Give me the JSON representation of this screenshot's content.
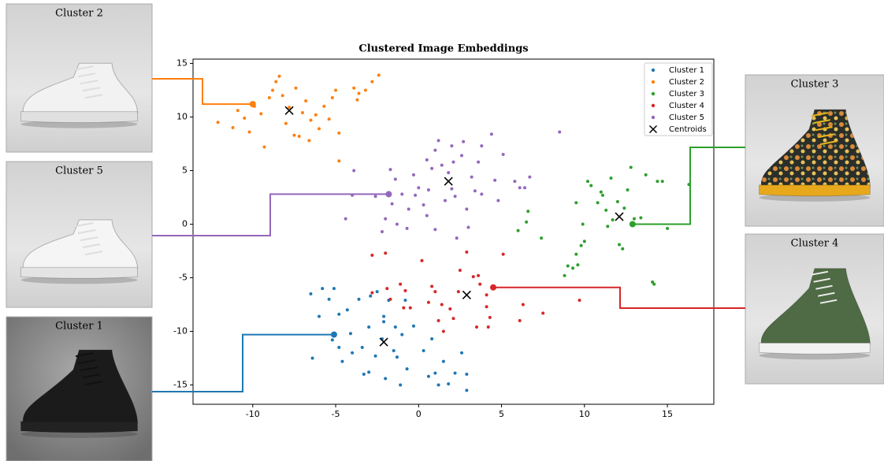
{
  "chart_data": {
    "type": "scatter",
    "title": "Clustered Image Embeddings",
    "xlim": [
      -13.6,
      17.8
    ],
    "ylim": [
      -16.8,
      15.4
    ],
    "xticks": [
      -10,
      -5,
      0,
      5,
      10,
      15
    ],
    "yticks": [
      -15,
      -10,
      -5,
      0,
      5,
      10,
      15
    ],
    "legend": "upper right",
    "series": [
      {
        "name": "Cluster 1",
        "color": "#1f77b4",
        "x": [
          -6.5,
          -6.4,
          -6.0,
          -5.8,
          -5.4,
          -5.1,
          -5.2,
          -4.8,
          -4.8,
          -4.6,
          -4.3,
          -4.1,
          -4.0,
          -3.6,
          -3.4,
          -3.3,
          -3.0,
          -3.0,
          -2.9,
          -2.6,
          -2.5,
          -2.2,
          -2.1,
          -2.0,
          -2.1,
          -1.8,
          -1.5,
          -1.3,
          -1.1,
          -1.0,
          -0.8,
          -0.7,
          -0.3,
          0.3,
          0.8,
          1.0,
          1.2,
          1.5,
          1.8,
          2.2,
          2.6,
          2.9,
          2.9,
          -1.4,
          0.6
        ],
        "y": [
          -6.5,
          -12.5,
          -8.6,
          -6.0,
          -7.0,
          -6.0,
          -10.8,
          -8.4,
          -11.5,
          -12.8,
          -8.0,
          -10.2,
          -12.0,
          -7.0,
          -11.5,
          -14.0,
          -13.8,
          -9.6,
          -6.7,
          -12.3,
          -6.3,
          -10.7,
          -8.6,
          -14.4,
          -9.1,
          -7.1,
          -11.8,
          -12.4,
          -15.0,
          -10.3,
          -7.1,
          -13.5,
          -9.5,
          -11.8,
          -10.7,
          -13.9,
          -15.0,
          -12.8,
          -14.9,
          -13.9,
          -12.0,
          -14.0,
          -15.5,
          -9.6,
          -14.2
        ],
        "highlight": {
          "x": -5.1,
          "y": -10.3
        }
      },
      {
        "name": "Cluster 2",
        "color": "#ff7f0e",
        "x": [
          -12.1,
          -11.2,
          -10.9,
          -10.5,
          -10.2,
          -9.9,
          -9.5,
          -9.3,
          -9.0,
          -8.8,
          -8.6,
          -8.4,
          -8.2,
          -8.0,
          -7.8,
          -7.5,
          -7.4,
          -7.2,
          -7.0,
          -6.8,
          -6.6,
          -6.5,
          -6.2,
          -6.0,
          -5.7,
          -5.4,
          -5.0,
          -4.8,
          -5.2,
          -4.8,
          -3.9,
          -3.7,
          -3.2,
          -2.8,
          -2.4,
          -3.6
        ],
        "y": [
          9.5,
          9.0,
          10.6,
          9.9,
          8.6,
          11.0,
          10.3,
          7.2,
          11.8,
          12.5,
          13.3,
          13.8,
          12.0,
          9.4,
          10.9,
          8.3,
          12.7,
          8.2,
          10.4,
          11.5,
          7.8,
          9.7,
          10.2,
          8.9,
          11.0,
          9.8,
          12.5,
          8.5,
          11.8,
          5.9,
          12.7,
          11.6,
          12.5,
          13.3,
          13.9,
          12.2
        ],
        "highlight": {
          "x": -10.0,
          "y": 11.2
        }
      },
      {
        "name": "Cluster 3",
        "color": "#2ca02c",
        "x": [
          6.0,
          6.5,
          6.6,
          7.4,
          8.8,
          9.0,
          9.3,
          9.6,
          9.8,
          10.0,
          9.5,
          9.5,
          9.9,
          10.2,
          10.4,
          10.8,
          11.0,
          11.1,
          11.3,
          11.4,
          11.6,
          12.0,
          12.1,
          12.3,
          12.4,
          12.6,
          12.8,
          13.4,
          13.7,
          14.1,
          14.2,
          14.4,
          14.7,
          15.0,
          16.3,
          13.0,
          11.7
        ],
        "y": [
          -0.6,
          0.2,
          1.2,
          -1.3,
          -4.8,
          -3.9,
          -4.1,
          -3.8,
          -2.0,
          -1.6,
          -2.8,
          2.0,
          0,
          4.0,
          3.6,
          2.0,
          3.0,
          2.7,
          1.3,
          -0.2,
          4.3,
          2.1,
          -1.9,
          -2.3,
          1.5,
          3.2,
          5.3,
          0.6,
          4.6,
          -5.4,
          -5.6,
          4.0,
          4.0,
          -0.4,
          3.7,
          0.5,
          0.4
        ],
        "highlight": {
          "x": 12.9,
          "y": 0.0
        }
      },
      {
        "name": "Cluster 4",
        "color": "#d62728",
        "x": [
          -2.8,
          -2.8,
          -2.0,
          -1.9,
          -1.7,
          -1.1,
          -0.9,
          -0.8,
          -0.5,
          0.2,
          0.6,
          0.8,
          1.0,
          1.2,
          1.4,
          1.5,
          1.9,
          2.1,
          2.4,
          2.5,
          2.9,
          3.3,
          3.6,
          3.7,
          3.5,
          4.1,
          4.1,
          4.3,
          4.2,
          5.1,
          6.3,
          6.1,
          7.5,
          9.7
        ],
        "y": [
          -2.9,
          -6.4,
          -2.7,
          -6.0,
          -7.0,
          -5.6,
          -7.8,
          -6.2,
          -7.8,
          -3.4,
          -7.3,
          -5.8,
          -6.3,
          -9.0,
          -7.5,
          -10.0,
          -7.9,
          -8.8,
          -6.3,
          -4.3,
          -2.6,
          -4.9,
          -4.8,
          -5.6,
          -9.6,
          -6.6,
          -7.7,
          -8.7,
          -9.6,
          -2.8,
          -7.5,
          -9.0,
          -8.3,
          -7.1
        ],
        "highlight": {
          "x": 4.5,
          "y": -5.9
        }
      },
      {
        "name": "Cluster 5",
        "color": "#9467bd",
        "x": [
          -4.4,
          -4.0,
          -3.9,
          -2.6,
          -2.2,
          -2.0,
          -1.7,
          -1.6,
          -1.4,
          -1.3,
          -1.0,
          -0.7,
          -0.3,
          -0.2,
          0.0,
          0.3,
          0.5,
          0.6,
          0.8,
          1.0,
          1.0,
          1.2,
          1.4,
          1.6,
          1.8,
          2.0,
          2.0,
          2.2,
          2.3,
          2.1,
          2.6,
          2.7,
          2.9,
          3.0,
          3.2,
          3.4,
          3.6,
          3.8,
          4.4,
          4.6,
          4.8,
          5.1,
          5.8,
          6.1,
          6.4,
          6.7,
          8.5,
          3.8,
          0.5,
          -0.6
        ],
        "y": [
          0.5,
          2.7,
          5.0,
          2.6,
          -0.7,
          0.5,
          5.1,
          1.9,
          4.2,
          0,
          2.8,
          -0.4,
          4.6,
          2.7,
          3.4,
          1.8,
          0.8,
          3.2,
          5.2,
          -0.5,
          6.9,
          7.8,
          5.5,
          2.2,
          4.8,
          3.3,
          7.3,
          2.6,
          -1.3,
          5.8,
          6.4,
          7.7,
          1.4,
          -0.3,
          4.4,
          3.1,
          5.8,
          2.8,
          8.4,
          4.1,
          2.2,
          6.5,
          4.0,
          3.4,
          3.4,
          4.4,
          8.6,
          7.3,
          6.0,
          1.4
        ],
        "highlight": {
          "x": -1.8,
          "y": 2.8
        }
      },
      {
        "name": "Centroids",
        "color": "#000000",
        "marker": "x",
        "x": [
          -2.1,
          -7.8,
          12.1,
          2.9,
          1.8
        ],
        "y": [
          -11.0,
          10.6,
          0.7,
          -6.6,
          4.0
        ]
      }
    ]
  }
}
